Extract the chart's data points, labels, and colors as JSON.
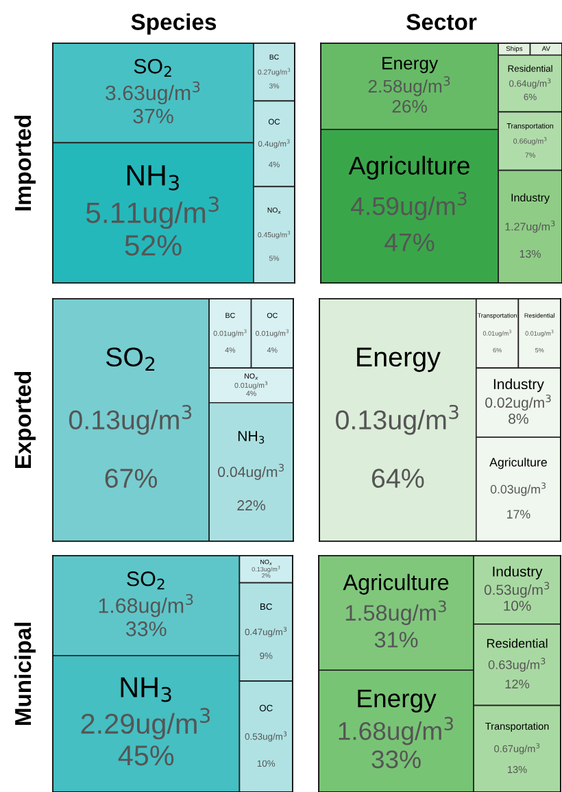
{
  "chart_data": [
    {
      "type": "other",
      "title": "Species",
      "ylabel": "Imported",
      "categories": [
        "SO$_{2}$",
        "NH$_{3}$",
        "BC",
        "OC",
        "NO$_{x}$"
      ],
      "values": [
        3.63,
        5.11,
        0.27,
        0.4,
        0.45
      ],
      "value_labels": [
        "3.63ug/m$^{3}$",
        "5.11ug/m$^{3}$",
        "0.27ug/m$^{3}$",
        "0.4ug/m$^{3}$",
        "0.45ug/m$^{3}$"
      ],
      "annotations": [
        "37%",
        "52%",
        "3%",
        "4%",
        "5%"
      ],
      "colors": [
        "#48c1c4",
        "#25b8bb",
        "#bde6e8",
        "#bde6e8",
        "#bde6e8"
      ]
    },
    {
      "type": "other",
      "title": "Sector",
      "categories": [
        "Energy",
        "Agriculture",
        "Ships",
        "AV",
        "Residential",
        "Transportation",
        "Industry"
      ],
      "values": [
        2.58,
        4.59,
        null,
        null,
        0.64,
        0.66,
        1.27
      ],
      "value_labels": [
        "2.58ug/m$^{3}$",
        "4.59ug/m$^{3}$",
        null,
        null,
        "0.64ug/m$^{3}$",
        "0.66ug/m$^{3}$",
        "1.27ug/m$^{3}$"
      ],
      "annotations": [
        "26%",
        "47%",
        "6%",
        "7%",
        "13%"
      ],
      "colors": [
        "#67bb67",
        "#3aa64a",
        "#e2f1de",
        "#e2f1de",
        "#b0dcaa",
        "#b0dcaa",
        "#8fcd86"
      ]
    },
    {
      "type": "other",
      "ylabel": "Exported",
      "categories": [
        "SO$_{2}$",
        "BC",
        "OC",
        "NO$_{x}$",
        "NH$_{3}$"
      ],
      "values": [
        0.13,
        0.01,
        0.01,
        0.01,
        0.04
      ],
      "value_labels": [
        "0.13ug/m$^{3}$",
        "0.01ug/m$^{3}$",
        "0.01ug/m$^{3}$",
        "0.01ug/m$^{3}$",
        "0.04ug/m$^{3}$"
      ],
      "annotations": [
        "67%",
        "4%",
        "4%",
        "4%",
        "22%"
      ],
      "colors": [
        "#78cdd0",
        "#d9f1f2",
        "#d9f1f2",
        "#d9f1f2",
        "#aadfe1"
      ]
    },
    {
      "type": "other",
      "categories": [
        "Energy",
        "Transportation",
        "Residential",
        "Industry",
        "Agriculture"
      ],
      "values": [
        0.13,
        0.01,
        0.01,
        0.02,
        0.03
      ],
      "value_labels": [
        "0.13ug/m$^{3}$",
        "0.01ug/m$^{3}$",
        "0.01ug/m$^{3}$",
        "0.02ug/m$^{3}$",
        "0.03ug/m$^{3}$"
      ],
      "annotations": [
        "64%",
        "6%",
        "5%",
        "8%",
        "17%"
      ],
      "colors": [
        "#dcedd9",
        "#f0f7ee",
        "#f0f7ee",
        "#f0f7ee",
        "#f0f7ee"
      ]
    },
    {
      "type": "other",
      "ylabel": "Municipal",
      "categories": [
        "SO$_{2}$",
        "NH$_{3}$",
        "NO$_{x}$",
        "BC",
        "OC"
      ],
      "values": [
        1.68,
        2.29,
        0.13,
        0.47,
        0.53
      ],
      "value_labels": [
        "1.68ug/m$^{3}$",
        "2.29ug/m$^{3}$",
        "0.13ug/m$^{3}$",
        "0.47ug/m$^{3}$",
        "0.53ug/m$^{3}$"
      ],
      "annotations": [
        "33%",
        "45%",
        "2%",
        "9%",
        "10%"
      ],
      "colors": [
        "#5ec6c9",
        "#45bfc2",
        "#cdeef0",
        "#b0e2e4",
        "#b0e2e4"
      ]
    },
    {
      "type": "other",
      "categories": [
        "Agriculture",
        "Energy",
        "Industry",
        "Residential",
        "Transportation"
      ],
      "values": [
        1.58,
        1.68,
        0.53,
        0.63,
        0.67
      ],
      "value_labels": [
        "1.58ug/m$^{3}$",
        "1.68ug/m$^{3}$",
        "0.53ug/m$^{3}$",
        "0.63ug/m$^{3}$",
        "0.67ug/m$^{3}$"
      ],
      "annotations": [
        "31%",
        "33%",
        "10%",
        "12%",
        "13%"
      ],
      "colors": [
        "#80c77c",
        "#78c475",
        "#a9d9a2",
        "#a9d9a2",
        "#a9d9a2"
      ]
    }
  ]
}
